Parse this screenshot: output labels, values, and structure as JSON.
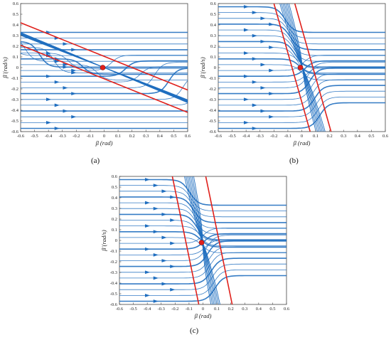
{
  "chart_data": [
    {
      "type": "streamplot",
      "panel_label": "(a)",
      "xlabel": "β (rad)",
      "ylabel": "β̇ (rad/s)",
      "xlim": [
        -0.6,
        0.6
      ],
      "ylim": [
        -0.6,
        0.6
      ],
      "xticks": [
        "-0.6",
        "-0.5",
        "-0.4",
        "-0.3",
        "-0.2",
        "-0.1",
        "0",
        "0.1",
        "0.2",
        "0.3",
        "0.4",
        "0.5",
        "0.6"
      ],
      "yticks": [
        "0.6",
        "0.5",
        "0.4",
        "0.3",
        "0.2",
        "0.1",
        "0",
        "-0.1",
        "-0.2",
        "-0.3",
        "-0.4",
        "-0.5",
        "-0.6"
      ],
      "equilibrium": {
        "x": -0.01,
        "y": 0.0
      },
      "boundary_lines": [
        {
          "points": [
            [
              -0.6,
              0.42
            ],
            [
              0.6,
              -0.21
            ]
          ]
        },
        {
          "points": [
            [
              -0.6,
              0.21
            ],
            [
              0.6,
              -0.42
            ]
          ]
        }
      ],
      "stream_color": "#1f6ebf",
      "boundary_color": "#e0201b",
      "equilibrium_color": "#e0201b"
    },
    {
      "type": "streamplot",
      "panel_label": "(b)",
      "xlabel": "β (rad)",
      "ylabel": "β̇ (rad/s)",
      "xlim": [
        -0.6,
        0.6
      ],
      "ylim": [
        -0.6,
        0.6
      ],
      "xticks": [
        "-0.6",
        "-0.5",
        "-0.4",
        "-0.3",
        "-0.2",
        "-0.1",
        "0",
        "0.1",
        "0.2",
        "0.3",
        "0.4",
        "0.5",
        "0.6"
      ],
      "yticks": [
        "0.6",
        "0.5",
        "0.4",
        "0.3",
        "0.2",
        "0.1",
        "0",
        "-0.1",
        "-0.2",
        "-0.3",
        "-0.4",
        "-0.5",
        "-0.6"
      ],
      "equilibrium": {
        "x": -0.01,
        "y": 0.0
      },
      "boundary_lines": [
        {
          "points": [
            [
              -0.2,
              0.6
            ],
            [
              0.06,
              -0.6
            ]
          ]
        },
        {
          "points": [
            [
              -0.05,
              0.6
            ],
            [
              0.21,
              -0.6
            ]
          ]
        }
      ],
      "stream_color": "#1f6ebf",
      "boundary_color": "#e0201b",
      "equilibrium_color": "#e0201b"
    },
    {
      "type": "streamplot",
      "panel_label": "(c)",
      "xlabel": "β (rad)",
      "ylabel": "β̇ (rad/s)",
      "xlim": [
        -0.6,
        0.6
      ],
      "ylim": [
        -0.6,
        0.6
      ],
      "xticks": [
        "-0.6",
        "-0.5",
        "-0.4",
        "-0.3",
        "-0.2",
        "-0.1",
        "0",
        "0.1",
        "0.2",
        "0.3",
        "0.4",
        "0.5",
        "0.6"
      ],
      "yticks": [
        "0.6",
        "0.5",
        "0.4",
        "0.3",
        "0.2",
        "0.1",
        "0",
        "-0.1",
        "-0.2",
        "-0.3",
        "-0.4",
        "-0.5",
        "-0.6"
      ],
      "equilibrium": {
        "x": -0.01,
        "y": -0.02
      },
      "boundary_lines": [
        {
          "points": [
            [
              -0.22,
              0.6
            ],
            [
              -0.03,
              -0.6
            ]
          ]
        },
        {
          "points": [
            [
              0.02,
              0.6
            ],
            [
              0.21,
              -0.6
            ]
          ]
        }
      ],
      "stream_color": "#1f6ebf",
      "boundary_color": "#e0201b",
      "equilibrium_color": "#e0201b"
    }
  ]
}
